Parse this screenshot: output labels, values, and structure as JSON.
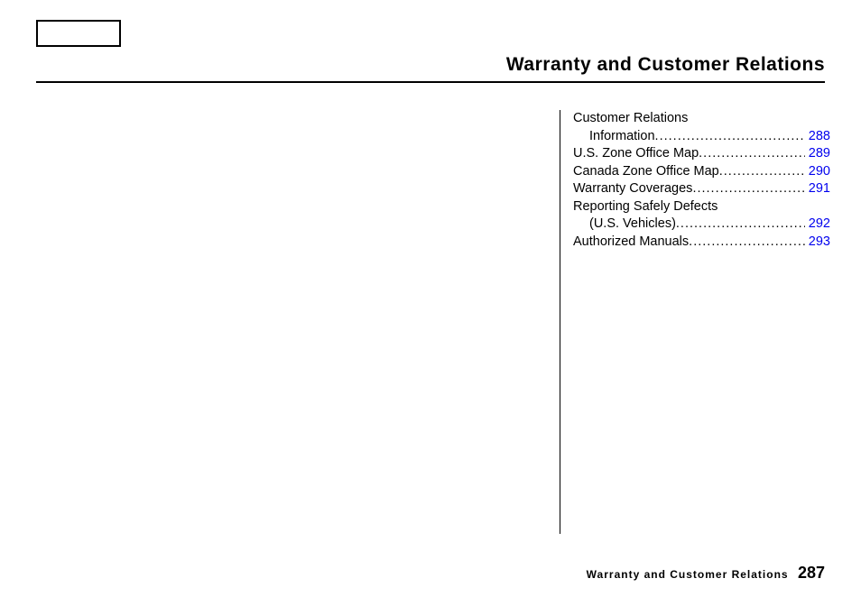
{
  "page": {
    "title": "Warranty and Customer Relations",
    "footer_label": "Warranty and Customer Relations",
    "footer_page": "287"
  },
  "toc": [
    {
      "label": "Customer Relations",
      "page": "",
      "sub": false,
      "nodots": true
    },
    {
      "label": "Information",
      "page": "288",
      "sub": true,
      "nodots": false
    },
    {
      "label": "U.S. Zone Office Map",
      "page": "289",
      "sub": false,
      "nodots": false
    },
    {
      "label": "Canada Zone Office Map",
      "page": "290",
      "sub": false,
      "nodots": false
    },
    {
      "label": "Warranty Coverages",
      "page": "291",
      "sub": false,
      "nodots": false
    },
    {
      "label": "Reporting Safely Defects",
      "page": "",
      "sub": false,
      "nodots": true
    },
    {
      "label": "(U.S. Vehicles)",
      "page": "292",
      "sub": true,
      "nodots": false
    },
    {
      "label": "Authorized Manuals",
      "page": "293",
      "sub": false,
      "nodots": false
    }
  ],
  "colors": {
    "link": "#0000ee",
    "text": "#000000",
    "bg": "#ffffff"
  }
}
